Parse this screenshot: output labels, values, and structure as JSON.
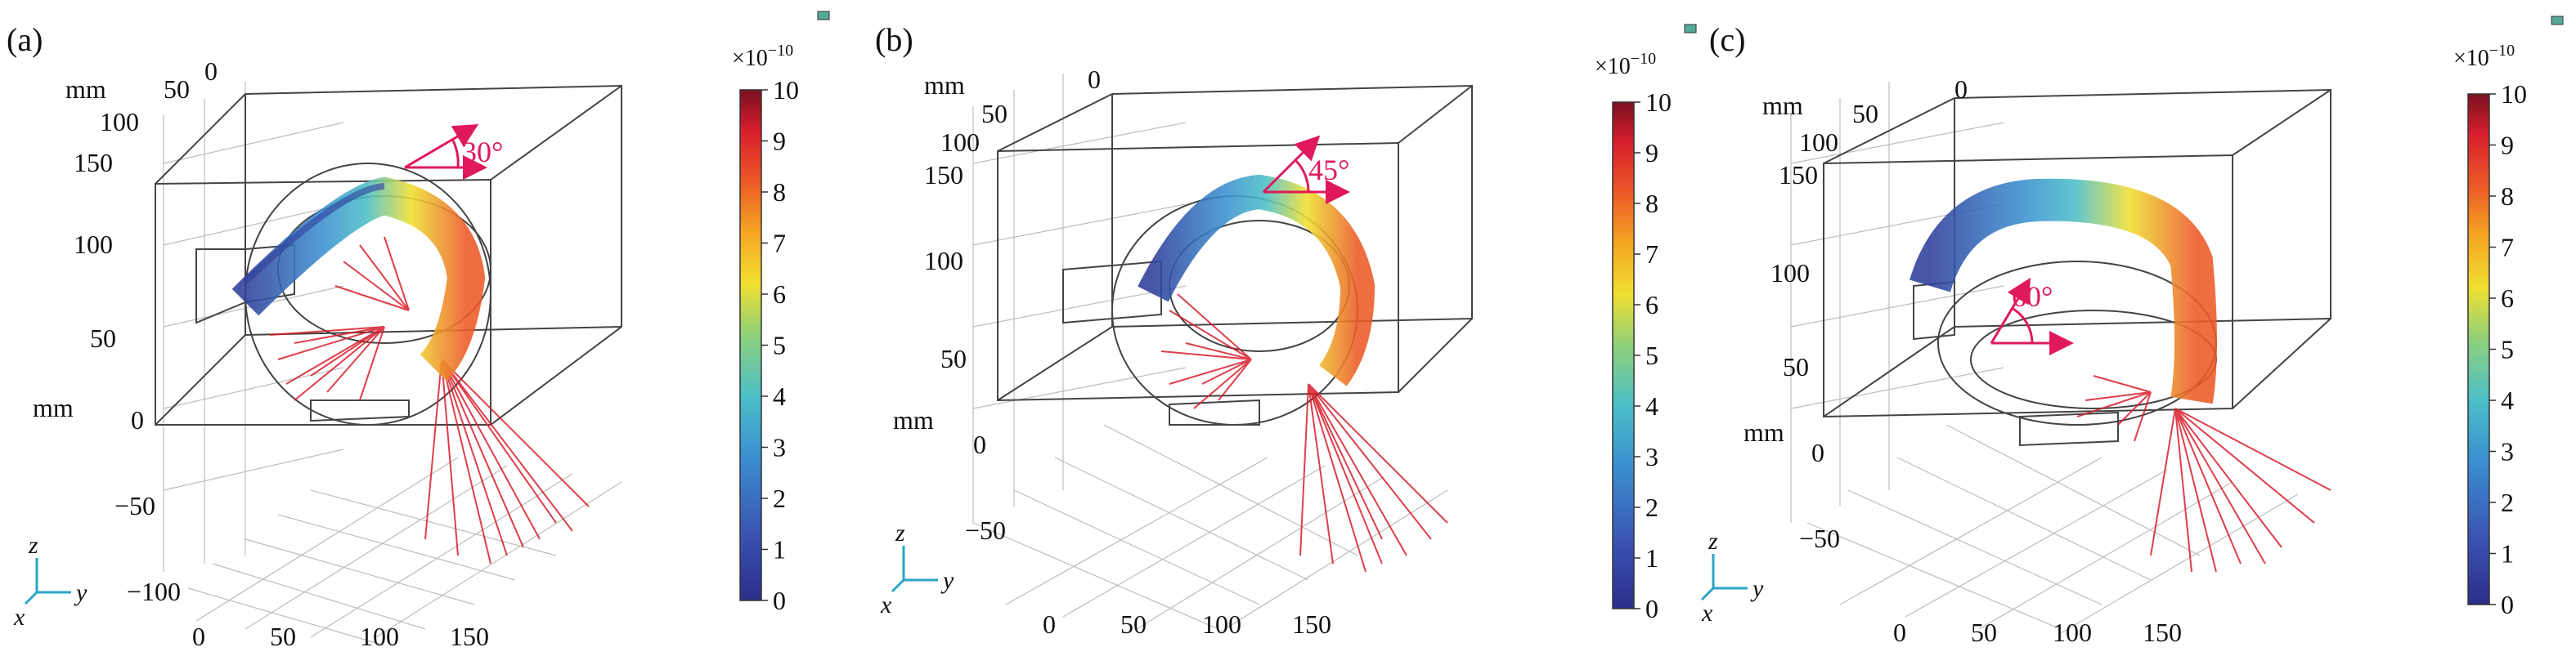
{
  "figure": {
    "panels": [
      {
        "label": "(a)",
        "angle_label": "30°",
        "angle_deg": 30,
        "axis_unit_top": "mm",
        "axis_unit_left": "mm",
        "depth_ticks": [
          "50",
          "0",
          "100",
          "150"
        ],
        "z_ticks": [
          "100",
          "50",
          "0",
          "−50",
          "−100"
        ],
        "y_ticks": [
          "0",
          "50",
          "100",
          "150"
        ],
        "colorbar": {
          "exponent_label": "×10",
          "exponent": "−10",
          "ticks": [
            "10",
            "9",
            "8",
            "7",
            "6",
            "5",
            "4",
            "3",
            "2",
            "1",
            "0"
          ],
          "min": 0,
          "max": 10
        }
      },
      {
        "label": "(b)",
        "angle_label": "45°",
        "angle_deg": 45,
        "axis_unit_top": "mm",
        "axis_unit_left": "mm",
        "depth_ticks": [
          "0",
          "50",
          "100",
          "150"
        ],
        "z_ticks": [
          "100",
          "50",
          "0",
          "−50"
        ],
        "y_ticks": [
          "0",
          "50",
          "100",
          "150"
        ],
        "colorbar": {
          "exponent_label": "×10",
          "exponent": "−10",
          "ticks": [
            "10",
            "9",
            "8",
            "7",
            "6",
            "5",
            "4",
            "3",
            "2",
            "1",
            "0"
          ],
          "min": 0,
          "max": 10
        }
      },
      {
        "label": "(c)",
        "angle_label": "60°",
        "angle_deg": 60,
        "axis_unit_top": "mm",
        "axis_unit_left": "mm",
        "depth_ticks": [
          "0",
          "50",
          "100",
          "150"
        ],
        "z_ticks": [
          "100",
          "50",
          "0",
          "−50"
        ],
        "y_ticks": [
          "0",
          "50",
          "100",
          "150"
        ],
        "colorbar": {
          "exponent_label": "×10",
          "exponent": "−10",
          "ticks": [
            "10",
            "9",
            "8",
            "7",
            "6",
            "5",
            "4",
            "3",
            "2",
            "1",
            "0"
          ],
          "min": 0,
          "max": 10
        }
      }
    ],
    "triad": {
      "z": "z",
      "y": "y",
      "x": "x"
    },
    "colors": {
      "frame": "#444444",
      "grid": "#bdbdbd",
      "annotation": "#e0195a",
      "colormap": [
        "#2b2e8a",
        "#3a56b0",
        "#3b8fd0",
        "#4bbfc8",
        "#8fd07a",
        "#f0e030",
        "#f5a623",
        "#ec5a27",
        "#d81e2c",
        "#7a1020"
      ]
    }
  }
}
